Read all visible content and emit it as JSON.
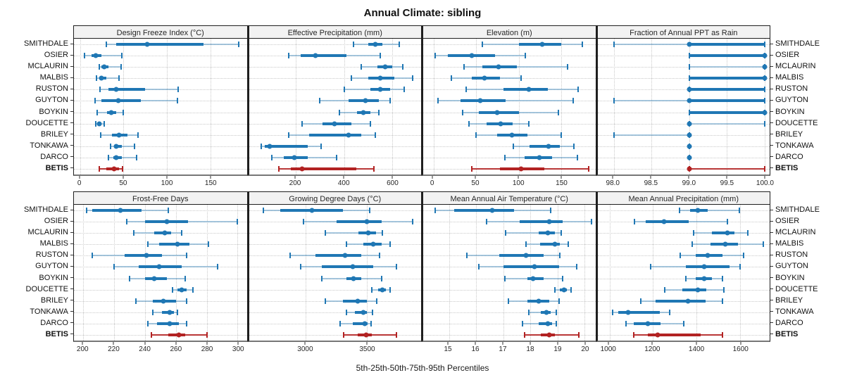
{
  "title": "Annual Climate: sibling",
  "footer_label": "5th-25th-50th-75th-95th Percentiles",
  "colors": {
    "series": "#1f77b4",
    "series_whisker": "rgba(31,119,180,0.38)",
    "highlight": "#b22222",
    "highlight_whisker": "rgba(178,34,34,0.9)",
    "grid": "#c9c9c9",
    "header_bg": "#f2f2f2"
  },
  "chart_data": {
    "type": "scatter",
    "variant": "five-number-percentile-whisker",
    "layout": {
      "grid_rows": 2,
      "grid_cols": 4,
      "row_labels_both_sides": true
    },
    "percentile_labels": [
      "p5",
      "p25",
      "p50",
      "p75",
      "p95"
    ],
    "highlight": "BETIS",
    "rows": [
      "SMITHDALE",
      "OSIER",
      "MCLAURIN",
      "MALBIS",
      "RUSTON",
      "GUYTON",
      "BOYKIN",
      "DOUCETTE",
      "BRILEY",
      "TONKAWA",
      "DARCO",
      "BETIS"
    ],
    "panels": [
      {
        "title": "Design Freeze Index (°C)",
        "xlim": [
          -7,
          192
        ],
        "ticks": [
          0,
          50,
          100,
          150
        ],
        "tick_labels": [
          "0",
          "50",
          "100",
          "150"
        ],
        "values": [
          [
            30,
            42,
            77,
            142,
            183
          ],
          [
            5,
            13,
            18,
            25,
            48
          ],
          [
            22,
            25,
            28,
            33,
            47
          ],
          [
            19,
            22,
            25,
            30,
            45
          ],
          [
            23,
            33,
            42,
            75,
            113
          ],
          [
            17,
            25,
            44,
            70,
            112
          ],
          [
            20,
            31,
            36,
            42,
            50
          ],
          [
            18,
            20,
            22,
            25,
            28
          ],
          [
            24,
            37,
            45,
            55,
            67
          ],
          [
            35,
            39,
            42,
            48,
            63
          ],
          [
            33,
            38,
            42,
            48,
            65
          ],
          [
            22,
            30,
            39,
            45,
            49
          ]
        ]
      },
      {
        "title": "Effective Precipitation (mm)",
        "xlim": [
          5,
          720
        ],
        "ticks": [
          200,
          400,
          600
        ],
        "tick_labels": [
          "200",
          "400",
          "600"
        ],
        "values": [
          [
            440,
            500,
            530,
            560,
            630
          ],
          [
            170,
            220,
            280,
            410,
            550
          ],
          [
            470,
            540,
            570,
            600,
            645
          ],
          [
            430,
            500,
            550,
            610,
            685
          ],
          [
            400,
            510,
            550,
            590,
            650
          ],
          [
            300,
            420,
            490,
            545,
            590
          ],
          [
            380,
            455,
            480,
            510,
            545
          ],
          [
            225,
            310,
            360,
            430,
            510
          ],
          [
            170,
            255,
            420,
            470,
            530
          ],
          [
            55,
            70,
            90,
            250,
            305
          ],
          [
            100,
            150,
            195,
            250,
            370
          ],
          [
            130,
            180,
            225,
            450,
            525
          ]
        ]
      },
      {
        "title": "Elevation (m)",
        "xlim": [
          -12,
          190
        ],
        "ticks": [
          0,
          50,
          100,
          150
        ],
        "tick_labels": [
          "0",
          "50",
          "100",
          "150"
        ],
        "values": [
          [
            57,
            100,
            128,
            150,
            175
          ],
          [
            2,
            17,
            45,
            72,
            108
          ],
          [
            36,
            57,
            76,
            98,
            157
          ],
          [
            21,
            45,
            60,
            78,
            103
          ],
          [
            38,
            82,
            112,
            134,
            170
          ],
          [
            5,
            32,
            55,
            85,
            164
          ],
          [
            34,
            53,
            75,
            100,
            147
          ],
          [
            42,
            62,
            79,
            93,
            112
          ],
          [
            50,
            75,
            92,
            110,
            150
          ],
          [
            94,
            113,
            135,
            148,
            165
          ],
          [
            84,
            107,
            124,
            139,
            169
          ],
          [
            45,
            78,
            103,
            130,
            182
          ]
        ]
      },
      {
        "title": "Fraction of Annual PPT as Rain",
        "xlim": [
          97.78,
          100.07
        ],
        "ticks": [
          98.0,
          98.5,
          99.0,
          99.5,
          100.0
        ],
        "tick_labels": [
          "98.0",
          "98.5",
          "99.0",
          "99.5",
          "100.0"
        ],
        "values": [
          [
            98,
            99,
            99,
            100,
            100
          ],
          [
            99,
            99,
            100,
            100,
            100
          ],
          [
            99,
            100,
            100,
            100,
            100
          ],
          [
            99,
            99,
            100,
            100,
            100
          ],
          [
            99,
            99,
            99,
            100,
            100
          ],
          [
            98,
            99,
            99,
            100,
            100
          ],
          [
            99,
            99,
            100,
            100,
            100
          ],
          [
            99,
            99,
            99,
            99,
            100
          ],
          [
            98,
            99,
            99,
            99,
            99
          ],
          [
            99,
            99,
            99,
            99,
            99
          ],
          [
            99,
            99,
            99,
            99,
            99
          ],
          [
            99,
            99,
            99,
            99,
            100
          ]
        ]
      },
      {
        "title": "Frost-Free Days",
        "xlim": [
          194,
          306
        ],
        "ticks": [
          200,
          220,
          240,
          260,
          280,
          300
        ],
        "tick_labels": [
          "200",
          "220",
          "240",
          "260",
          "280",
          "300"
        ],
        "values": [
          [
            202,
            206,
            224,
            238,
            255
          ],
          [
            228,
            240,
            254,
            268,
            300
          ],
          [
            233,
            246,
            253,
            257,
            264
          ],
          [
            242,
            249,
            261,
            269,
            281
          ],
          [
            206,
            227,
            241,
            251,
            267
          ],
          [
            220,
            236,
            249,
            264,
            287
          ],
          [
            230,
            240,
            246,
            254,
            266
          ],
          [
            258,
            261,
            264,
            267,
            271
          ],
          [
            234,
            245,
            252,
            260,
            267
          ],
          [
            245,
            251,
            256,
            259,
            261
          ],
          [
            242,
            248,
            256,
            262,
            267
          ],
          [
            244,
            255,
            262,
            266,
            280
          ]
        ]
      },
      {
        "title": "Growing Degree Days (°C)",
        "xlim": [
          2535,
          3940
        ],
        "ticks": [
          3000,
          3500
        ],
        "tick_labels": [
          "3000",
          "3500"
        ],
        "values": [
          [
            2650,
            2790,
            3050,
            3300,
            3520
          ],
          [
            2980,
            3250,
            3500,
            3620,
            3870
          ],
          [
            3160,
            3430,
            3510,
            3570,
            3625
          ],
          [
            3330,
            3470,
            3550,
            3620,
            3685
          ],
          [
            2870,
            3080,
            3320,
            3450,
            3600
          ],
          [
            2960,
            3130,
            3380,
            3550,
            3740
          ],
          [
            3130,
            3330,
            3390,
            3450,
            3620
          ],
          [
            3540,
            3590,
            3625,
            3650,
            3685
          ],
          [
            3160,
            3300,
            3420,
            3500,
            3580
          ],
          [
            3330,
            3400,
            3470,
            3500,
            3545
          ],
          [
            3280,
            3380,
            3480,
            3505,
            3530
          ],
          [
            3310,
            3420,
            3490,
            3540,
            3740
          ]
        ]
      },
      {
        "title": "Mean Annual Air Temperature (°C)",
        "xlim": [
          14.05,
          20.4
        ],
        "ticks": [
          15,
          16,
          17,
          18,
          19,
          20
        ],
        "tick_labels": [
          "15",
          "16",
          "17",
          "18",
          "19",
          "20"
        ],
        "values": [
          [
            14.5,
            15.2,
            16.6,
            17.4,
            18.75
          ],
          [
            16.4,
            17.6,
            18.7,
            19.2,
            20.25
          ],
          [
            17.1,
            18.3,
            18.65,
            18.9,
            19.15
          ],
          [
            17.85,
            18.35,
            18.9,
            19.1,
            19.4
          ],
          [
            15.65,
            16.85,
            17.85,
            18.5,
            19.1
          ],
          [
            16.1,
            17.0,
            18.15,
            19.05,
            19.7
          ],
          [
            17.05,
            17.9,
            18.1,
            18.5,
            19.2
          ],
          [
            18.9,
            19.1,
            19.25,
            19.35,
            19.5
          ],
          [
            17.2,
            17.9,
            18.3,
            18.7,
            19.05
          ],
          [
            17.95,
            18.4,
            18.6,
            18.75,
            18.95
          ],
          [
            17.7,
            18.3,
            18.65,
            18.8,
            18.95
          ],
          [
            17.8,
            18.4,
            18.7,
            18.9,
            19.8
          ]
        ]
      },
      {
        "title": "Mean Annual Precipitation (mm)",
        "xlim": [
          945,
          1735
        ],
        "ticks": [
          1000,
          1200,
          1400,
          1600
        ],
        "tick_labels": [
          "1000",
          "1200",
          "1400",
          "1600"
        ],
        "values": [
          [
            1320,
            1370,
            1405,
            1450,
            1595
          ],
          [
            1115,
            1165,
            1250,
            1365,
            1540
          ],
          [
            1385,
            1470,
            1540,
            1575,
            1635
          ],
          [
            1380,
            1465,
            1530,
            1590,
            1705
          ],
          [
            1325,
            1395,
            1450,
            1520,
            1615
          ],
          [
            1190,
            1350,
            1435,
            1550,
            1600
          ],
          [
            1350,
            1395,
            1435,
            1470,
            1520
          ],
          [
            1255,
            1335,
            1405,
            1445,
            1525
          ],
          [
            1145,
            1210,
            1360,
            1440,
            1520
          ],
          [
            1015,
            1040,
            1085,
            1230,
            1275
          ],
          [
            1075,
            1110,
            1175,
            1235,
            1340
          ],
          [
            1110,
            1175,
            1220,
            1420,
            1520
          ]
        ]
      }
    ]
  }
}
